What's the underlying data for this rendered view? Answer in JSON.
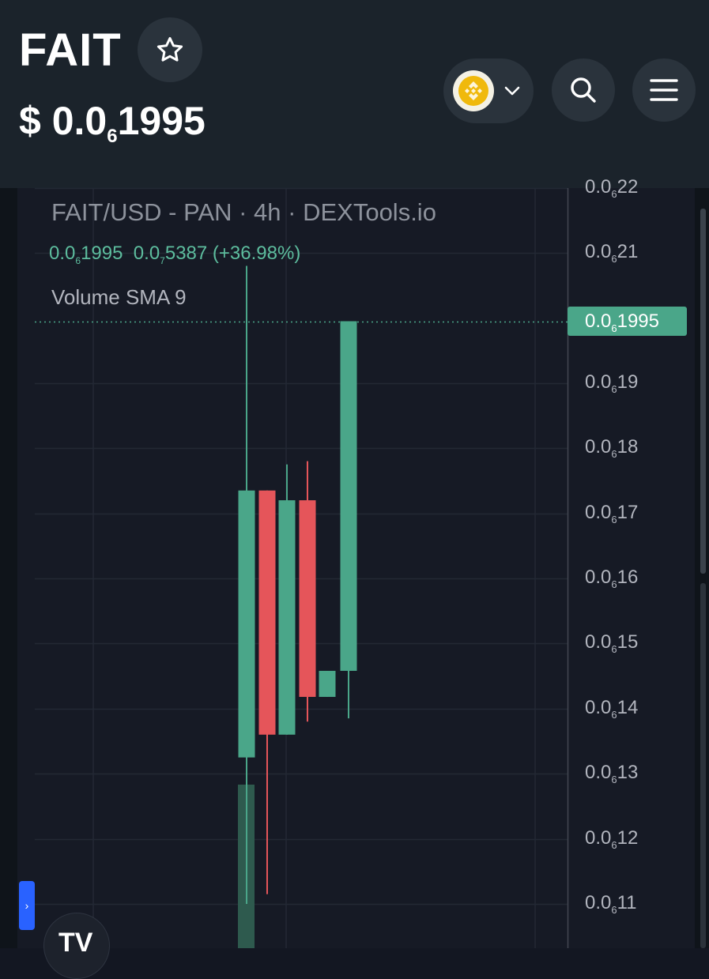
{
  "header": {
    "token_name": "FAIT",
    "price_prefix": "$ 0.0",
    "price_zeros": "6",
    "price_digits": "1995",
    "star_icon": "star-outline-icon",
    "chain_icon": "bnb-chain-icon",
    "chevron_icon": "chevron-down-icon",
    "search_icon": "search-icon",
    "menu_icon": "hamburger-menu-icon"
  },
  "legend": {
    "title": "FAIT/USD - PAN · 4h · DEXTools.io",
    "ohlc_a_prefix": "0.0",
    "ohlc_a_zeros": "6",
    "ohlc_a_digits": "1995",
    "ohlc_b_prefix": "0.0",
    "ohlc_b_zeros": "7",
    "ohlc_b_digits": "5387",
    "ohlc_change": "(+36.98%)",
    "volume_label": "Volume SMA 9"
  },
  "current_price_tag": {
    "prefix": "0.0",
    "zeros": "6",
    "digits": "1995"
  },
  "side_tab_label": "›",
  "tv_logo_text": "TV",
  "colors": {
    "up": "#4aa689",
    "down": "#e5555a",
    "volume": "#2e5a4e",
    "header_bg": "#1b232b",
    "chart_bg": "#161a25",
    "price_line": "#4aa689"
  },
  "chart_data": {
    "type": "candlestick",
    "price_note": "values in units of 1e-7 USD (0.0₆19 = 1.9e-7)",
    "y_ticks": [
      {
        "prefix": "0.0",
        "zeros": "6",
        "digits": "22"
      },
      {
        "prefix": "0.0",
        "zeros": "6",
        "digits": "21"
      },
      {
        "prefix": "0.0",
        "zeros": "6",
        "digits": "19"
      },
      {
        "prefix": "0.0",
        "zeros": "6",
        "digits": "18"
      },
      {
        "prefix": "0.0",
        "zeros": "6",
        "digits": "17"
      },
      {
        "prefix": "0.0",
        "zeros": "6",
        "digits": "16"
      },
      {
        "prefix": "0.0",
        "zeros": "6",
        "digits": "15"
      },
      {
        "prefix": "0.0",
        "zeros": "6",
        "digits": "14"
      },
      {
        "prefix": "0.0",
        "zeros": "6",
        "digits": "13"
      },
      {
        "prefix": "0.0",
        "zeros": "6",
        "digits": "12"
      },
      {
        "prefix": "0.0",
        "zeros": "6",
        "digits": "11"
      }
    ],
    "ylim": [
      1.06,
      2.23
    ],
    "current_price": 1.995,
    "candles": [
      {
        "open": 1.325,
        "high": 2.08,
        "low": 1.1,
        "close": 1.735
      },
      {
        "open": 1.735,
        "high": 1.735,
        "low": 1.115,
        "close": 1.36
      },
      {
        "open": 1.36,
        "high": 1.775,
        "low": 1.36,
        "close": 1.72
      },
      {
        "open": 1.72,
        "high": 1.78,
        "low": 1.38,
        "close": 1.418
      },
      {
        "open": 1.418,
        "high": 1.458,
        "low": 1.418,
        "close": 1.458
      },
      {
        "open": 1.458,
        "high": 1.995,
        "low": 1.385,
        "close": 1.995
      }
    ],
    "volume": [
      {
        "candle": 0,
        "relative": 1.0
      }
    ]
  }
}
